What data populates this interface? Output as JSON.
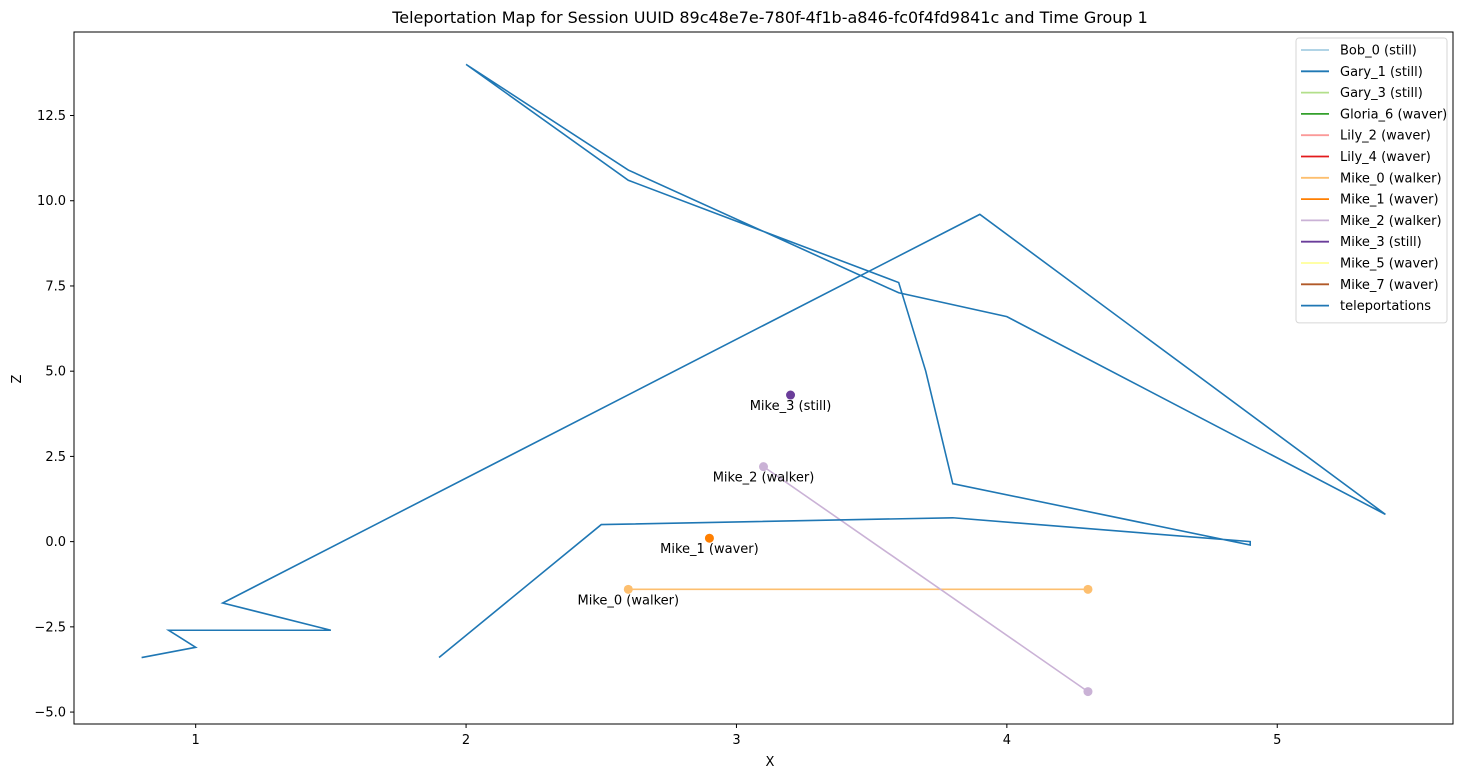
{
  "chart_data": {
    "type": "line",
    "title": "Teleportation Map for Session UUID 89c48e7e-780f-4f1b-a846-fc0f4fd9841c and Time Group 1",
    "xlabel": "X",
    "ylabel": "Z",
    "xlim": [
      0.55,
      5.65
    ],
    "ylim": [
      -5.35,
      14.95
    ],
    "xticks": [
      1,
      2,
      3,
      4,
      5
    ],
    "yticks": [
      -5.0,
      -2.5,
      0.0,
      2.5,
      5.0,
      7.5,
      10.0,
      12.5
    ],
    "ytick_labels": [
      "−5.0",
      "−2.5",
      "0.0",
      "2.5",
      "5.0",
      "7.5",
      "10.0",
      "12.5"
    ],
    "grid": false,
    "legend_position": "upper right",
    "series": [
      {
        "name": "Bob_0 (still)",
        "color": "#a6cee3",
        "x": [],
        "y": []
      },
      {
        "name": "Gary_1 (still)",
        "color": "#1f78b4",
        "x": [],
        "y": []
      },
      {
        "name": "Gary_3 (still)",
        "color": "#b2df8a",
        "x": [],
        "y": []
      },
      {
        "name": "Gloria_6 (waver)",
        "color": "#33a02c",
        "x": [],
        "y": []
      },
      {
        "name": "Lily_2 (waver)",
        "color": "#fb9a99",
        "x": [],
        "y": []
      },
      {
        "name": "Lily_4 (waver)",
        "color": "#e31a1c",
        "x": [],
        "y": []
      },
      {
        "name": "Mike_0 (walker)",
        "color": "#fdbf6f",
        "x": [
          2.6,
          4.3
        ],
        "y": [
          -1.4,
          -1.4
        ],
        "label": "Mike_0 (walker)"
      },
      {
        "name": "Mike_1 (waver)",
        "color": "#ff7f00",
        "x": [
          2.9
        ],
        "y": [
          0.1
        ],
        "label": "Mike_1 (waver)"
      },
      {
        "name": "Mike_2 (walker)",
        "color": "#cab2d6",
        "x": [
          3.1,
          4.3
        ],
        "y": [
          2.2,
          -4.4
        ],
        "label": "Mike_2 (walker)"
      },
      {
        "name": "Mike_3 (still)",
        "color": "#6a3d9a",
        "x": [
          3.2
        ],
        "y": [
          4.3
        ],
        "label": "Mike_3 (still)"
      },
      {
        "name": "Mike_5 (waver)",
        "color": "#ffff99",
        "x": [],
        "y": []
      },
      {
        "name": "Mike_7 (waver)",
        "color": "#b15928",
        "x": [],
        "y": []
      },
      {
        "name": "teleportations",
        "color": "#1f77b4",
        "x": [
          1.9,
          2.5,
          3.8,
          4.9,
          4.9,
          3.8,
          3.7,
          3.6,
          2.6,
          2.0,
          2.6,
          3.6,
          4.0,
          5.4,
          3.9,
          1.1,
          1.5,
          0.9,
          1.0,
          0.8
        ],
        "y": [
          -3.4,
          0.5,
          0.7,
          0.0,
          -0.1,
          1.7,
          5.0,
          7.6,
          10.6,
          14.0,
          10.9,
          7.3,
          6.6,
          0.8,
          9.6,
          -1.8,
          -2.6,
          -2.6,
          -3.1,
          -3.4
        ]
      }
    ]
  }
}
